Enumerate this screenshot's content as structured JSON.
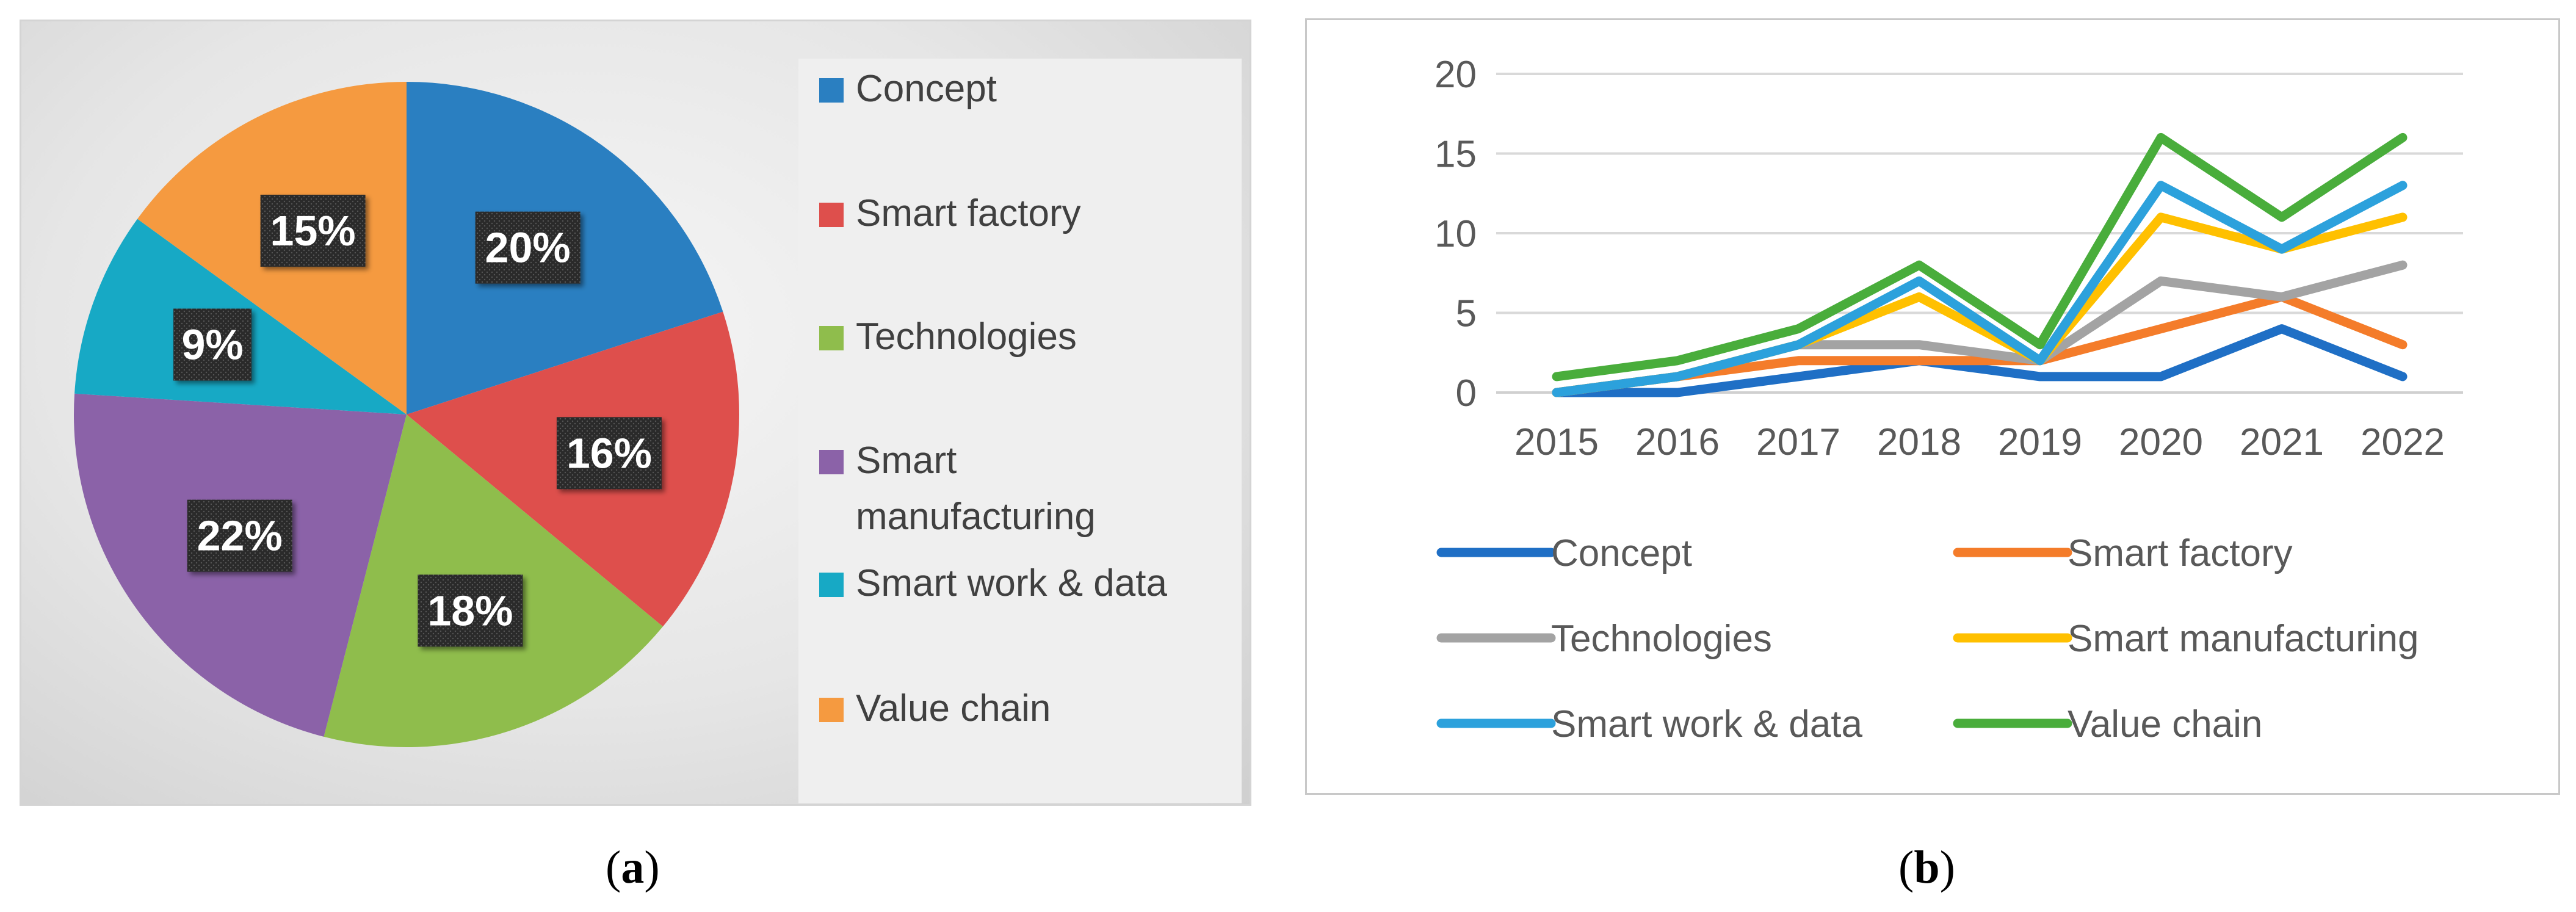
{
  "chart_data": [
    {
      "type": "pie",
      "panel_label": "a",
      "categories": [
        "Concept",
        "Smart factory",
        "Technologies",
        "Smart manufacturing",
        "Smart work & data",
        "Value chain"
      ],
      "values": [
        20,
        16,
        18,
        22,
        9,
        15
      ],
      "data_labels": [
        "20%",
        "16%",
        "18%",
        "22%",
        "9%",
        "15%"
      ],
      "legend_labels": [
        "Concept",
        "Smart factory",
        "Technologies",
        "Smart\nmanufacturing",
        "Smart work & data",
        "Value chain"
      ],
      "colors": [
        "#2a7fc1",
        "#de4f4c",
        "#8fbd4c",
        "#8b62a8",
        "#17a9c5",
        "#f59a40"
      ],
      "legend_position": "right"
    },
    {
      "type": "line",
      "panel_label": "b",
      "x": [
        "2015",
        "2016",
        "2017",
        "2018",
        "2019",
        "2020",
        "2021",
        "2022"
      ],
      "ylim": [
        0,
        20
      ],
      "yticks": [
        "0",
        "5",
        "10",
        "15",
        "20"
      ],
      "grid": true,
      "legend_position": "bottom",
      "series": [
        {
          "name": "Concept",
          "color": "#1f6fc5",
          "values": [
            0,
            0,
            1,
            2,
            1,
            1,
            4,
            1
          ]
        },
        {
          "name": "Smart factory",
          "color": "#f47c2a",
          "values": [
            0,
            1,
            2,
            2,
            2,
            4,
            6,
            3
          ]
        },
        {
          "name": "Technologies",
          "color": "#a3a3a3",
          "values": [
            0,
            1,
            3,
            3,
            2,
            7,
            6,
            8
          ]
        },
        {
          "name": "Smart manufacturing",
          "color": "#ffc000",
          "values": [
            0,
            1,
            3,
            6,
            2,
            11,
            9,
            11
          ]
        },
        {
          "name": "Smart work & data",
          "color": "#2ca1dc",
          "values": [
            0,
            1,
            3,
            7,
            2,
            13,
            9,
            13
          ]
        },
        {
          "name": "Value chain",
          "color": "#49ad3b",
          "values": [
            1,
            2,
            4,
            8,
            3,
            16,
            11,
            16
          ]
        }
      ]
    }
  ],
  "captions": {
    "a": "a",
    "b": "b"
  }
}
